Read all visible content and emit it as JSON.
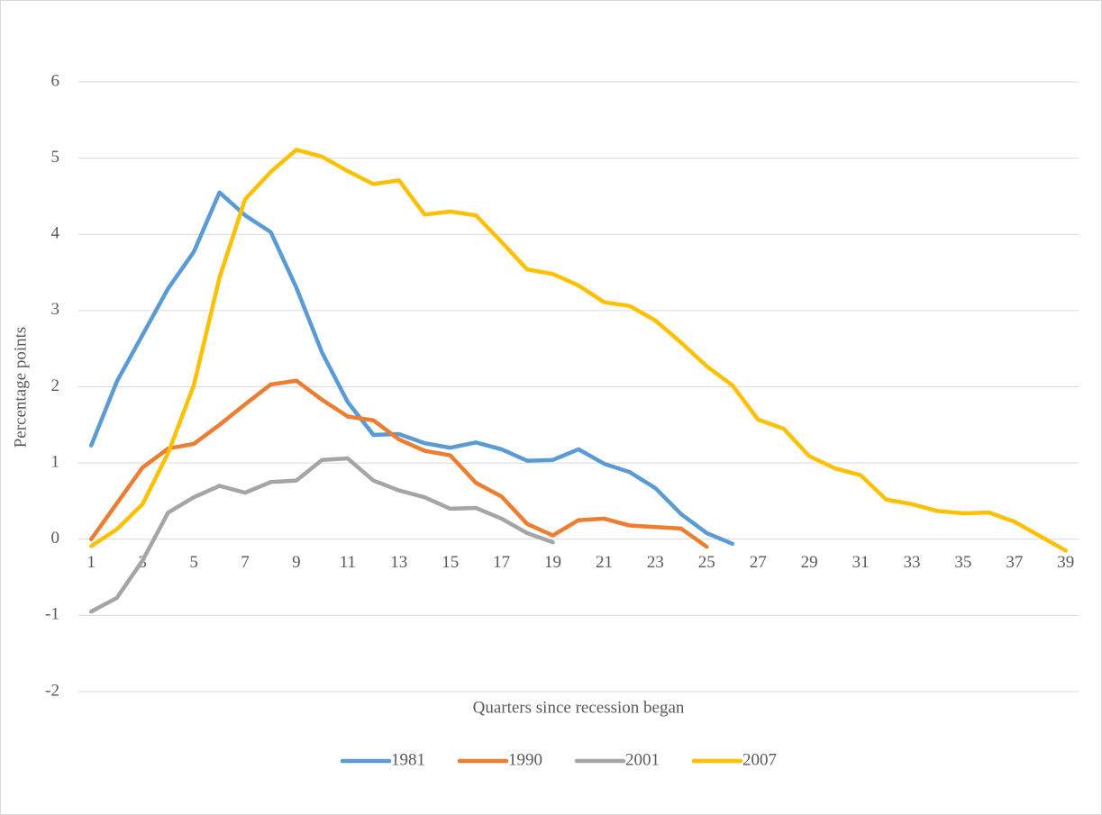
{
  "chart_data": {
    "type": "line",
    "y_label": "Percentage points",
    "x_label": "Quarters since recession began",
    "x": [
      1,
      2,
      3,
      4,
      5,
      6,
      7,
      8,
      9,
      10,
      11,
      12,
      13,
      14,
      15,
      16,
      17,
      18,
      19,
      20,
      21,
      22,
      23,
      24,
      25,
      26,
      27,
      28,
      29,
      30,
      31,
      32,
      33,
      34,
      35,
      36,
      37,
      38,
      39
    ],
    "xlim": [
      0.5,
      39.5
    ],
    "xticks": [
      1,
      3,
      5,
      7,
      9,
      11,
      13,
      15,
      17,
      19,
      21,
      23,
      25,
      27,
      29,
      31,
      33,
      35,
      37,
      39
    ],
    "ylim": [
      -2,
      6
    ],
    "yticks": [
      -2,
      -1,
      0,
      1,
      2,
      3,
      4,
      5,
      6
    ],
    "grid": true,
    "legend": "bottom",
    "series": [
      {
        "name": "1981",
        "color": "#5b9bd5",
        "values": [
          1.23,
          2.07,
          2.68,
          3.29,
          3.77,
          4.55,
          4.25,
          4.03,
          3.3,
          2.45,
          1.8,
          1.37,
          1.38,
          1.26,
          1.2,
          1.27,
          1.18,
          1.03,
          1.04,
          1.18,
          0.99,
          0.88,
          0.67,
          0.33,
          0.08,
          -0.06,
          null,
          null,
          null,
          null,
          null,
          null,
          null,
          null,
          null,
          null,
          null,
          null,
          null
        ]
      },
      {
        "name": "1990",
        "color": "#ed7d31",
        "values": [
          0,
          0.47,
          0.94,
          1.19,
          1.25,
          1.5,
          1.77,
          2.03,
          2.08,
          1.83,
          1.61,
          1.56,
          1.31,
          1.16,
          1.1,
          0.74,
          0.56,
          0.2,
          0.05,
          0.25,
          0.27,
          0.18,
          0.16,
          0.14,
          -0.1,
          null,
          null,
          null,
          null,
          null,
          null,
          null,
          null,
          null,
          null,
          null,
          null,
          null,
          null
        ]
      },
      {
        "name": "2001",
        "color": "#a5a5a5",
        "values": [
          -0.95,
          -0.77,
          -0.28,
          0.35,
          0.55,
          0.7,
          0.61,
          0.75,
          0.77,
          1.04,
          1.06,
          0.77,
          0.64,
          0.55,
          0.4,
          0.41,
          0.27,
          0.08,
          -0.04,
          null,
          null,
          null,
          null,
          null,
          null,
          null,
          null,
          null,
          null,
          null,
          null,
          null,
          null,
          null,
          null,
          null,
          null,
          null,
          null
        ]
      },
      {
        "name": "2007",
        "color": "#ffc000",
        "values": [
          -0.09,
          0.13,
          0.46,
          1.13,
          2.02,
          3.43,
          4.46,
          4.82,
          5.11,
          5.02,
          4.83,
          4.66,
          4.71,
          4.26,
          4.3,
          4.25,
          3.9,
          3.54,
          3.48,
          3.33,
          3.11,
          3.06,
          2.87,
          2.58,
          2.27,
          2.02,
          1.57,
          1.45,
          1.09,
          0.93,
          0.84,
          0.52,
          0.46,
          0.37,
          0.34,
          0.35,
          0.23,
          0.04,
          -0.15
        ]
      }
    ]
  }
}
